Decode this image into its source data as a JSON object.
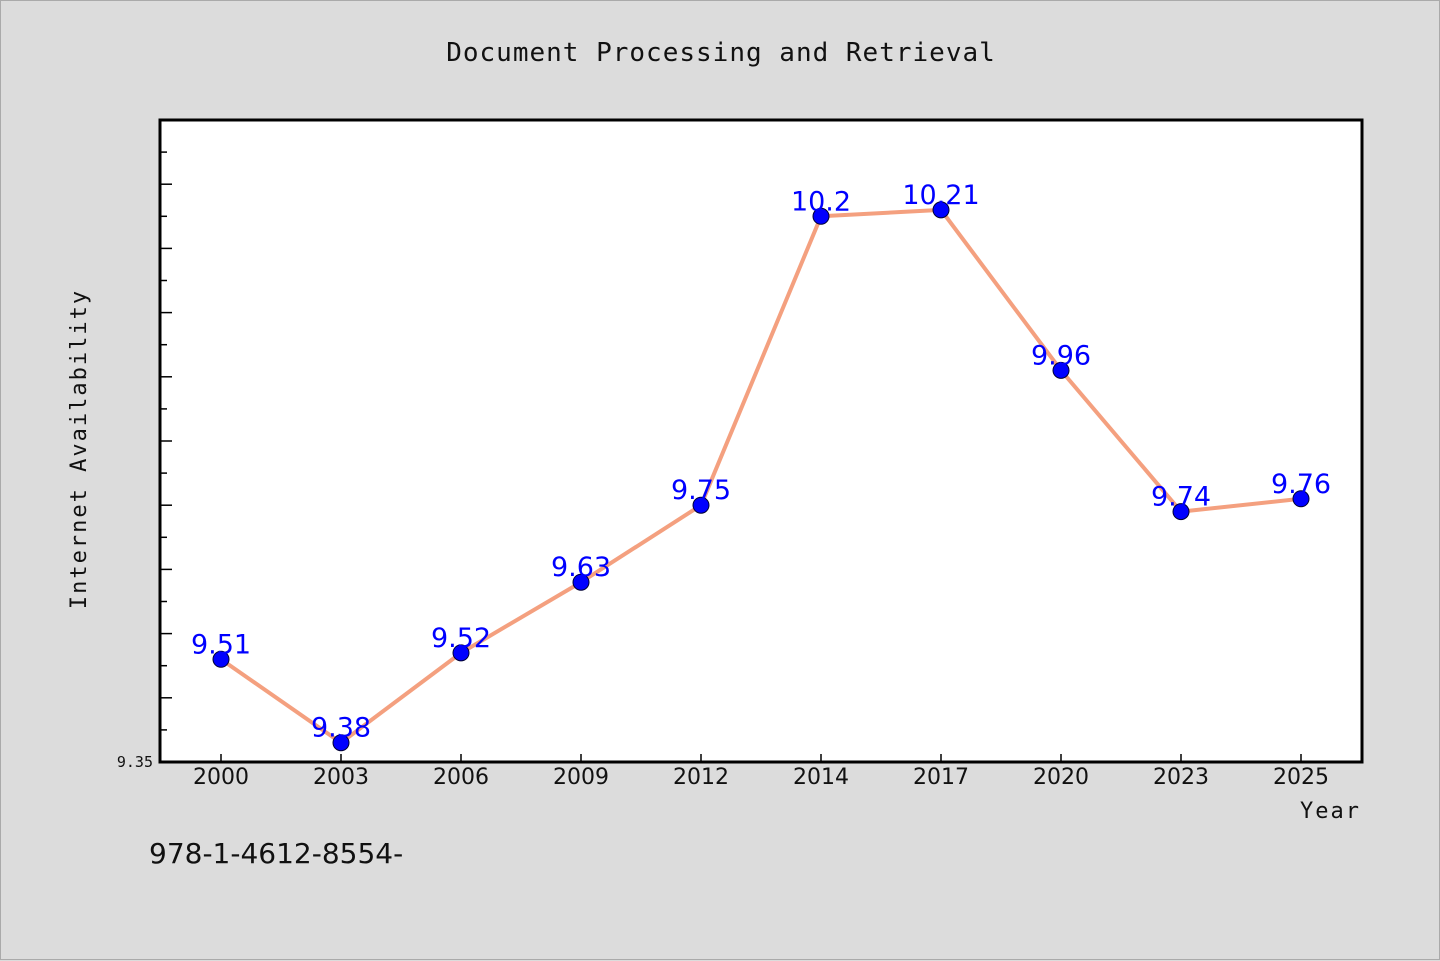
{
  "chart_data": {
    "type": "line",
    "title": "Document Processing and Retrieval",
    "xlabel": "Year",
    "ylabel": "Internet Availability",
    "categories": [
      "2000",
      "2003",
      "2006",
      "2009",
      "2012",
      "2014",
      "2017",
      "2020",
      "2023",
      "2025"
    ],
    "series": [
      {
        "values": [
          9.51,
          9.38,
          9.52,
          9.63,
          9.75,
          10.2,
          10.21,
          9.96,
          9.74,
          9.76
        ],
        "data_labels": [
          "9.51",
          "9.38",
          "9.52",
          "9.63",
          "9.75",
          "10.2",
          "10.21",
          "9.96",
          "9.74",
          "9.76"
        ]
      }
    ],
    "ylim": [
      9.35,
      10.35
    ],
    "y_tick_labels": [
      "9.35"
    ],
    "grid": false,
    "legend": "none",
    "colors": {
      "line": "#f4a07f",
      "marker": "#0000ff",
      "data_label": "#0000ff",
      "plot_background": "#ffffff",
      "figure_background": "#dcdcdc"
    }
  },
  "footnote": "978-1-4612-8554-"
}
